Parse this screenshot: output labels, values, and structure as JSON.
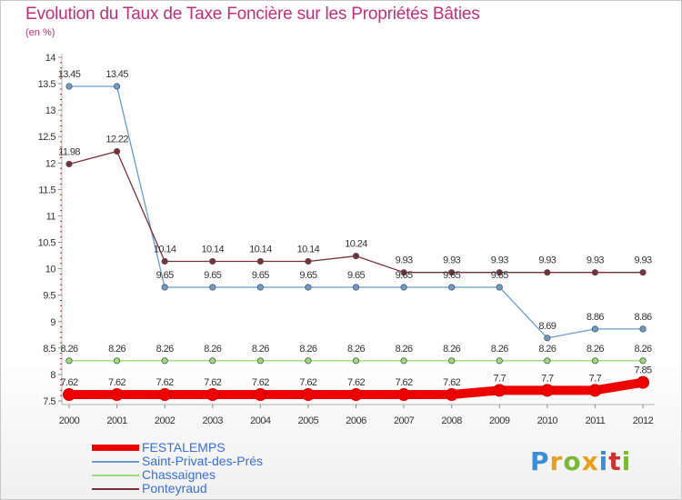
{
  "title": "Evolution du Taux de Taxe Foncière sur les Propriétés Bâties",
  "subtitle": "(en %)",
  "logo": {
    "letters": [
      "P",
      "r",
      "o",
      "x",
      "i",
      "t",
      "i"
    ],
    "colors": [
      "#3b8fd6",
      "#e8a01c",
      "#7ab83a",
      "#e8a01c",
      "#3b8fd6",
      "#d03030",
      "#7ab83a"
    ]
  },
  "chart_data": {
    "type": "line",
    "x": [
      "2000",
      "2001",
      "2002",
      "2003",
      "2004",
      "2005",
      "2006",
      "2007",
      "2008",
      "2009",
      "2010",
      "2011",
      "2012"
    ],
    "ylim": [
      7.5,
      14
    ],
    "yticks": [
      7.5,
      8,
      8.5,
      9,
      9.5,
      10,
      10.5,
      11,
      11.5,
      12,
      12.5,
      13,
      13.5,
      14
    ],
    "ytick_labels": [
      "7.5",
      "8",
      "8.5",
      "9",
      "9.5",
      "10",
      "10.5",
      "11",
      "11.5",
      "12",
      "12.5",
      "13",
      "13.5",
      "14"
    ],
    "grid": false,
    "legend_position": "bottom-left",
    "series": [
      {
        "name": "FESTALEMPS",
        "color": "#ee0000",
        "values": [
          7.62,
          7.62,
          7.62,
          7.62,
          7.62,
          7.62,
          7.62,
          7.62,
          7.62,
          7.7,
          7.7,
          7.7,
          7.85
        ],
        "labels": [
          "7.62",
          "7.62",
          "7.62",
          "7.62",
          "7.62",
          "7.62",
          "7.62",
          "7.62",
          "7.62",
          "7.7",
          "7.7",
          "7.7",
          "7.85"
        ]
      },
      {
        "name": "Saint-Privat-des-Prés",
        "color": "#6a9ccc",
        "values": [
          13.45,
          13.45,
          9.65,
          9.65,
          9.65,
          9.65,
          9.65,
          9.65,
          9.65,
          9.65,
          8.69,
          8.86,
          8.86
        ],
        "labels": [
          "13.45",
          "13.45",
          "9.65",
          "9.65",
          "9.65",
          "9.65",
          "9.65",
          "9.65",
          "9.65",
          "9.65",
          "8.69",
          "8.86",
          "8.86"
        ]
      },
      {
        "name": "Chassaignes",
        "color": "#99dd77",
        "values": [
          8.26,
          8.26,
          8.26,
          8.26,
          8.26,
          8.26,
          8.26,
          8.26,
          8.26,
          8.26,
          8.26,
          8.26,
          8.26
        ],
        "labels": [
          "8.26",
          "8.26",
          "8.26",
          "8.26",
          "8.26",
          "8.26",
          "8.26",
          "8.26",
          "8.26",
          "8.26",
          "8.26",
          "8.26",
          "8.26"
        ]
      },
      {
        "name": "Ponteyraud",
        "color": "#7a3038",
        "values": [
          11.98,
          12.22,
          10.14,
          10.14,
          10.14,
          10.14,
          10.24,
          9.93,
          9.93,
          9.93,
          9.93,
          9.93,
          9.93
        ],
        "labels": [
          "11.98",
          "12.22",
          "10.14",
          "10.14",
          "10.14",
          "10.14",
          "10.24",
          "9.93",
          "9.93",
          "9.93",
          "9.93",
          "9.93",
          "9.93"
        ]
      }
    ]
  }
}
